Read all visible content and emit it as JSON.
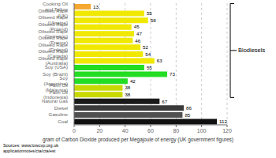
{
  "chart_data": {
    "type": "bar",
    "orientation": "horizontal",
    "categories": [
      "Cooking Oil and Tallow",
      "Oilseed Rape (UK)",
      "Oilseed Rape (Ukraine)",
      "Oilseed Rape (Poland)",
      "Oilseed Rape (Germany)",
      "Oilseed Rape (France)",
      "Oilseed Rape (Finland)",
      "Oilseed Rape (Canada)",
      "Oilseed Rape (Australia)",
      "Soy (USA)",
      "Soy (Brazil)",
      "Soy (Argentina)",
      "Palm Oil (Malaysia)",
      "Palm Oil (Indonesia)",
      "Natural Gas",
      "Diesel",
      "Gasoline",
      "Coal"
    ],
    "values": [
      13,
      55,
      58,
      45,
      47,
      46,
      52,
      54,
      63,
      55,
      73,
      42,
      38,
      38,
      67,
      86,
      85,
      112
    ],
    "colors": [
      "#f4a832",
      "#f0e800",
      "#f0e800",
      "#f0e800",
      "#f0e800",
      "#f0e800",
      "#f0e800",
      "#f0e800",
      "#f0e800",
      "#22dd22",
      "#22dd22",
      "#22dd22",
      "#c8d800",
      "#c8d800",
      "#1a1a1a",
      "#3a3a3a",
      "#505050",
      "#101010"
    ],
    "xlabel": "gram of Carbon Dioxide produced per Megajoule of energy (UK government figures)",
    "xlim": [
      0,
      120
    ],
    "xticks": [
      0,
      20,
      40,
      60,
      80,
      100,
      120
    ],
    "grid": true,
    "data_labels": true,
    "annotations": [
      {
        "text": "Biodiesels",
        "from": "Cooking Oil and Tallow",
        "to": "Palm Oil (Indonesia)"
      },
      {
        "text": "Sources: www.lowcvp.org.uk\napplicationnotes/cta/cta/est"
      }
    ]
  }
}
